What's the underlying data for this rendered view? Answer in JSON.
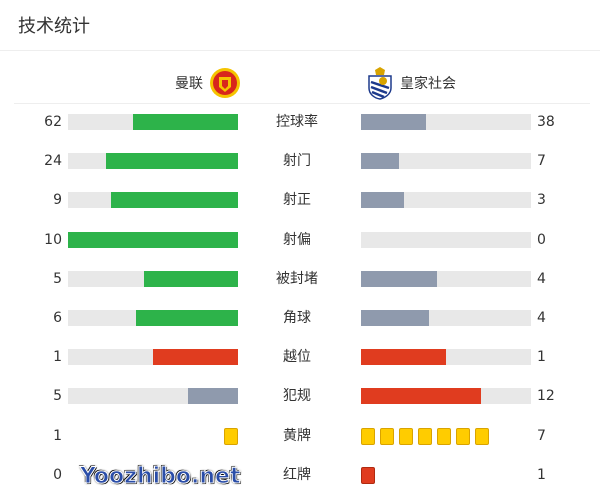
{
  "title": "技术统计",
  "home": {
    "name": "曼联",
    "logo": "manchester-united-crest"
  },
  "away": {
    "name": "皇家社会",
    "logo": "real-sociedad-crest"
  },
  "colors": {
    "green": "#2db34a",
    "gray": "#8f9aad",
    "red": "#e03c1f",
    "yellow": "#ffcc00",
    "track": "#e8e8e8"
  },
  "stats": [
    {
      "label": "控球率",
      "home": 62,
      "away": 38,
      "hc": "green",
      "ac": "gray"
    },
    {
      "label": "射门",
      "home": 24,
      "away": 7,
      "hc": "green",
      "ac": "gray"
    },
    {
      "label": "射正",
      "home": 9,
      "away": 3,
      "hc": "green",
      "ac": "gray"
    },
    {
      "label": "射偏",
      "home": 10,
      "away": 0,
      "hc": "green",
      "ac": "gray"
    },
    {
      "label": "被封堵",
      "home": 5,
      "away": 4,
      "hc": "green",
      "ac": "gray"
    },
    {
      "label": "角球",
      "home": 6,
      "away": 4,
      "hc": "green",
      "ac": "gray"
    },
    {
      "label": "越位",
      "home": 1,
      "away": 1,
      "hc": "red",
      "ac": "red"
    },
    {
      "label": "犯规",
      "home": 5,
      "away": 12,
      "hc": "gray",
      "ac": "red"
    }
  ],
  "cards": [
    {
      "label": "黄牌",
      "home": 1,
      "away": 7,
      "color": "yellow"
    },
    {
      "label": "红牌",
      "home": 0,
      "away": 1,
      "color": "red"
    }
  ],
  "watermark": "Yoozhibo.net"
}
